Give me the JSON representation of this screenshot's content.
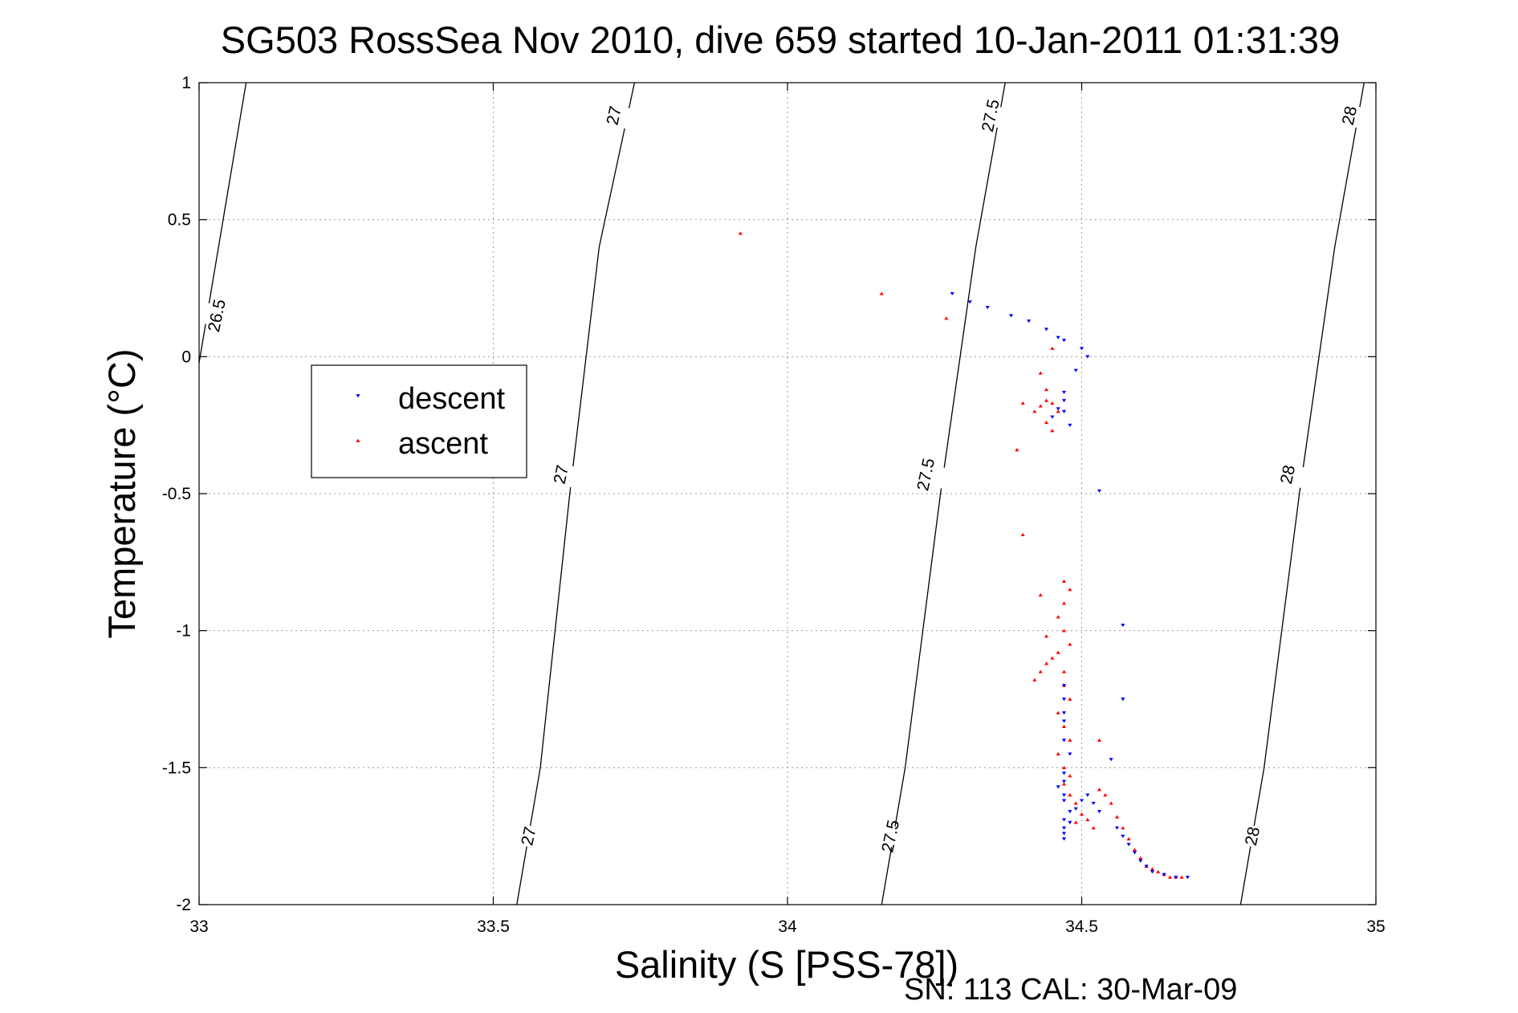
{
  "chart_data": {
    "type": "scatter",
    "title": "SG503 RossSea Nov 2010, dive 659 started 10-Jan-2011 01:31:39",
    "xlabel": "Salinity (S [PSS-78])",
    "ylabel": "Temperature (°C)",
    "xlim": [
      33,
      35
    ],
    "ylim": [
      -2,
      1
    ],
    "xticks": [
      33,
      33.5,
      34,
      34.5,
      35
    ],
    "xtick_labels": [
      "33",
      "33.5",
      "34",
      "34.5",
      "35"
    ],
    "yticks": [
      -2,
      -1.5,
      -1,
      -0.5,
      0,
      0.5,
      1
    ],
    "ytick_labels": [
      "-2",
      "-1.5",
      "-1",
      "-0.5",
      "0",
      "0.5",
      "1"
    ],
    "grid": true,
    "legend_position": "upper-left",
    "footnote": "SN: 113  CAL: 30-Mar-09",
    "isopycnals": [
      {
        "label": "26.5",
        "points": [
          [
            32.99,
            -0.15
          ],
          [
            33.08,
            1.0
          ]
        ],
        "label_positions": [
          [
            33.03,
            0.15
          ]
        ]
      },
      {
        "label": "27",
        "points": [
          [
            33.54,
            -2.0
          ],
          [
            33.58,
            -1.5
          ],
          [
            33.63,
            -0.5
          ],
          [
            33.68,
            0.4
          ],
          [
            33.74,
            1.0
          ]
        ],
        "label_positions": [
          [
            33.56,
            -1.75
          ],
          [
            33.615,
            -0.43
          ],
          [
            33.705,
            0.88
          ]
        ]
      },
      {
        "label": "27.5",
        "points": [
          [
            34.16,
            -2.0
          ],
          [
            34.2,
            -1.5
          ],
          [
            34.26,
            -0.5
          ],
          [
            34.32,
            0.4
          ],
          [
            34.37,
            1.0
          ]
        ],
        "label_positions": [
          [
            34.175,
            -1.75
          ],
          [
            34.235,
            -0.43
          ],
          [
            34.345,
            0.88
          ]
        ]
      },
      {
        "label": "28",
        "points": [
          [
            34.77,
            -2.0
          ],
          [
            34.81,
            -1.5
          ],
          [
            34.87,
            -0.5
          ],
          [
            34.93,
            0.4
          ],
          [
            34.98,
            1.0
          ]
        ],
        "label_positions": [
          [
            34.79,
            -1.75
          ],
          [
            34.85,
            -0.43
          ],
          [
            34.955,
            0.88
          ]
        ]
      }
    ],
    "series": [
      {
        "name": "descent",
        "color": "#0000ff",
        "marker": "triangle-down",
        "points": [
          [
            34.28,
            0.23
          ],
          [
            34.31,
            0.2
          ],
          [
            34.34,
            0.18
          ],
          [
            34.38,
            0.15
          ],
          [
            34.41,
            0.13
          ],
          [
            34.44,
            0.1
          ],
          [
            34.46,
            0.07
          ],
          [
            34.47,
            0.06
          ],
          [
            34.5,
            0.03
          ],
          [
            34.51,
            0.0
          ],
          [
            34.49,
            -0.05
          ],
          [
            34.47,
            -0.13
          ],
          [
            34.47,
            -0.16
          ],
          [
            34.46,
            -0.19
          ],
          [
            34.47,
            -0.2
          ],
          [
            34.45,
            -0.22
          ],
          [
            34.48,
            -0.25
          ],
          [
            34.53,
            -0.49
          ],
          [
            34.57,
            -0.98
          ],
          [
            34.57,
            -1.25
          ],
          [
            34.47,
            -1.2
          ],
          [
            34.47,
            -1.25
          ],
          [
            34.47,
            -1.3
          ],
          [
            34.47,
            -1.33
          ],
          [
            34.47,
            -1.4
          ],
          [
            34.48,
            -1.45
          ],
          [
            34.47,
            -1.52
          ],
          [
            34.47,
            -1.55
          ],
          [
            34.46,
            -1.57
          ],
          [
            34.47,
            -1.6
          ],
          [
            34.47,
            -1.62
          ],
          [
            34.48,
            -1.66
          ],
          [
            34.47,
            -1.69
          ],
          [
            34.47,
            -1.72
          ],
          [
            34.47,
            -1.74
          ],
          [
            34.47,
            -1.76
          ],
          [
            34.48,
            -1.7
          ],
          [
            34.49,
            -1.65
          ],
          [
            34.5,
            -1.62
          ],
          [
            34.51,
            -1.6
          ],
          [
            34.52,
            -1.63
          ],
          [
            34.53,
            -1.66
          ],
          [
            34.55,
            -1.47
          ],
          [
            34.56,
            -1.72
          ],
          [
            34.57,
            -1.75
          ],
          [
            34.58,
            -1.78
          ],
          [
            34.59,
            -1.81
          ],
          [
            34.6,
            -1.84
          ],
          [
            34.61,
            -1.86
          ],
          [
            34.62,
            -1.88
          ],
          [
            34.64,
            -1.89
          ],
          [
            34.66,
            -1.9
          ],
          [
            34.68,
            -1.9
          ]
        ]
      },
      {
        "name": "ascent",
        "color": "#ff0000",
        "marker": "triangle-up",
        "points": [
          [
            33.92,
            0.45
          ],
          [
            34.16,
            0.23
          ],
          [
            34.27,
            0.14
          ],
          [
            34.45,
            0.03
          ],
          [
            34.43,
            -0.06
          ],
          [
            34.44,
            -0.12
          ],
          [
            34.44,
            -0.16
          ],
          [
            34.43,
            -0.18
          ],
          [
            34.42,
            -0.2
          ],
          [
            34.45,
            -0.17
          ],
          [
            34.46,
            -0.2
          ],
          [
            34.44,
            -0.24
          ],
          [
            34.45,
            -0.27
          ],
          [
            34.4,
            -0.17
          ],
          [
            34.39,
            -0.34
          ],
          [
            34.4,
            -0.65
          ],
          [
            34.43,
            -0.87
          ],
          [
            34.47,
            -0.82
          ],
          [
            34.48,
            -0.85
          ],
          [
            34.47,
            -0.9
          ],
          [
            34.46,
            -0.95
          ],
          [
            34.47,
            -1.0
          ],
          [
            34.48,
            -1.05
          ],
          [
            34.46,
            -1.08
          ],
          [
            34.45,
            -1.1
          ],
          [
            34.44,
            -1.12
          ],
          [
            34.43,
            -1.15
          ],
          [
            34.42,
            -1.18
          ],
          [
            34.44,
            -1.02
          ],
          [
            34.47,
            -1.15
          ],
          [
            34.47,
            -1.2
          ],
          [
            34.48,
            -1.25
          ],
          [
            34.46,
            -1.3
          ],
          [
            34.47,
            -1.35
          ],
          [
            34.48,
            -1.4
          ],
          [
            34.46,
            -1.45
          ],
          [
            34.47,
            -1.5
          ],
          [
            34.48,
            -1.53
          ],
          [
            34.47,
            -1.56
          ],
          [
            34.48,
            -1.6
          ],
          [
            34.49,
            -1.63
          ],
          [
            34.5,
            -1.67
          ],
          [
            34.51,
            -1.69
          ],
          [
            34.49,
            -1.7
          ],
          [
            34.52,
            -1.72
          ],
          [
            34.53,
            -1.4
          ],
          [
            34.53,
            -1.58
          ],
          [
            34.54,
            -1.6
          ],
          [
            34.55,
            -1.63
          ],
          [
            34.56,
            -1.68
          ],
          [
            34.57,
            -1.72
          ],
          [
            34.58,
            -1.76
          ],
          [
            34.59,
            -1.8
          ],
          [
            34.6,
            -1.83
          ],
          [
            34.61,
            -1.86
          ],
          [
            34.62,
            -1.87
          ],
          [
            34.63,
            -1.88
          ],
          [
            34.64,
            -1.89
          ],
          [
            34.65,
            -1.9
          ],
          [
            34.66,
            -1.9
          ],
          [
            34.67,
            -1.9
          ]
        ]
      }
    ]
  }
}
